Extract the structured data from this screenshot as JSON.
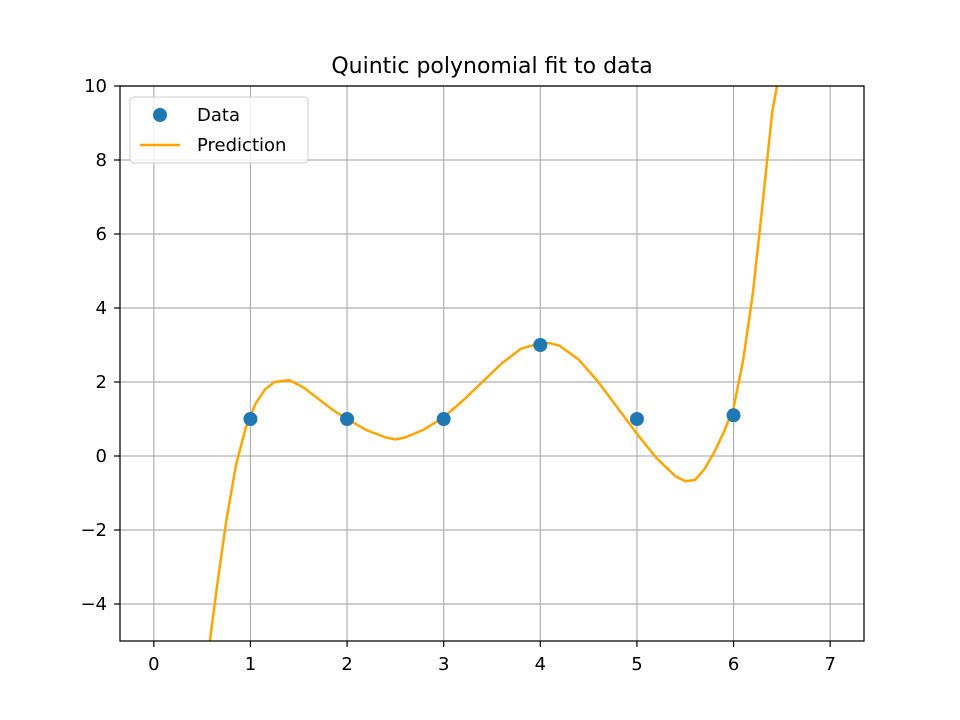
{
  "chart_data": {
    "type": "scatter",
    "title": "Quintic polynomial fit to data",
    "xlabel": "",
    "ylabel": "",
    "xlim": [
      -0.35,
      7.35
    ],
    "ylim": [
      -5,
      10
    ],
    "xticks": [
      "0",
      "1",
      "2",
      "3",
      "4",
      "5",
      "6",
      "7"
    ],
    "yticks": [
      "−4",
      "−2",
      "0",
      "2",
      "4",
      "6",
      "8",
      "10"
    ],
    "grid": true,
    "legend_position": "top-left",
    "series": [
      {
        "name": "Data",
        "kind": "scatter",
        "color": "#1f77b4",
        "x": [
          1,
          2,
          3,
          4,
          5,
          6
        ],
        "y": [
          1,
          1,
          1,
          3,
          1,
          1.1
        ]
      },
      {
        "name": "Prediction",
        "kind": "line",
        "color": "#ffa500",
        "x": [
          0.58,
          0.65,
          0.75,
          0.85,
          0.95,
          1.05,
          1.15,
          1.25,
          1.4,
          1.55,
          1.7,
          1.85,
          2.0,
          2.2,
          2.4,
          2.5,
          2.6,
          2.8,
          3.0,
          3.2,
          3.4,
          3.6,
          3.8,
          4.0,
          4.1,
          4.2,
          4.4,
          4.6,
          4.8,
          5.0,
          5.2,
          5.4,
          5.5,
          5.6,
          5.7,
          5.8,
          5.9,
          6.0,
          6.1,
          6.2,
          6.3,
          6.4,
          6.45
        ],
        "y": [
          -5.0,
          -3.6,
          -1.75,
          -0.25,
          0.75,
          1.4,
          1.8,
          2.0,
          2.05,
          1.85,
          1.55,
          1.25,
          1.0,
          0.7,
          0.5,
          0.45,
          0.5,
          0.72,
          1.05,
          1.5,
          2.0,
          2.5,
          2.9,
          3.05,
          3.05,
          2.98,
          2.6,
          2.0,
          1.3,
          0.6,
          -0.05,
          -0.55,
          -0.68,
          -0.65,
          -0.35,
          0.1,
          0.65,
          1.3,
          2.6,
          4.4,
          6.8,
          9.3,
          10.0
        ]
      }
    ]
  }
}
